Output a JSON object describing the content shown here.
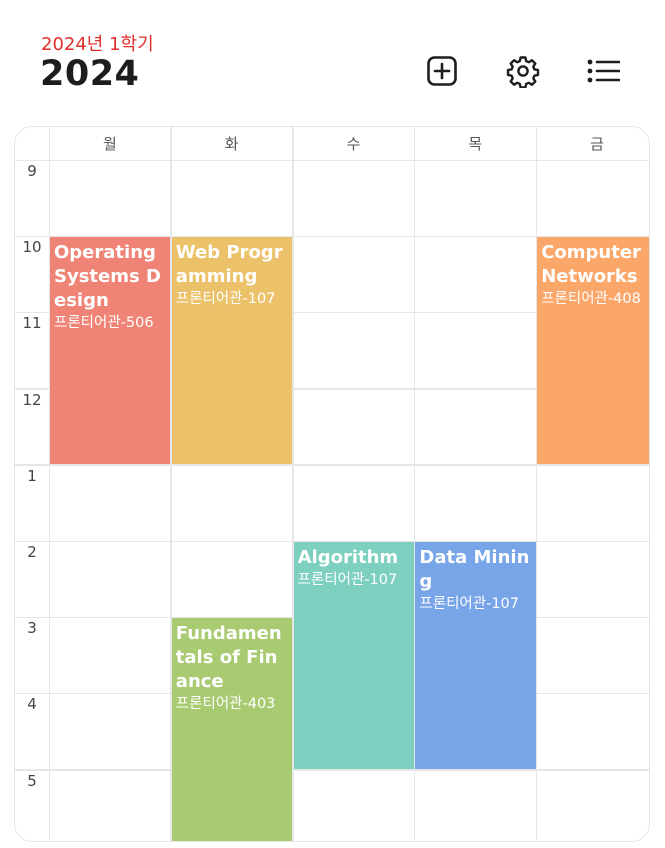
{
  "header": {
    "semester": "2024년 1학기",
    "year": "2024",
    "icons": [
      "add-square-icon",
      "gear-icon",
      "list-icon"
    ]
  },
  "days": [
    "월",
    "화",
    "수",
    "목",
    "금"
  ],
  "hours": [
    "9",
    "10",
    "11",
    "12",
    "1",
    "2",
    "3",
    "4",
    "5"
  ],
  "courses": [
    {
      "title": "Operating Systems Design",
      "room": "프론티어관-506",
      "day": "월",
      "start": "10",
      "end": "1",
      "color": "#ef8476"
    },
    {
      "title": "Web Programming",
      "room": "프론티어관-107",
      "day": "화",
      "start": "10",
      "end": "1",
      "color": "#ebc269"
    },
    {
      "title": "Computer Networks",
      "room": "프론티어관-408",
      "day": "금",
      "start": "10",
      "end": "1",
      "color": "#fca76a"
    },
    {
      "title": "Algorithm",
      "room": "프론티어관-107",
      "day": "수",
      "start": "2",
      "end": "5",
      "color": "#7dcfbf"
    },
    {
      "title": "Data Mining",
      "room": "프론티어관-107",
      "day": "목",
      "start": "2",
      "end": "5",
      "color": "#78a4e8"
    },
    {
      "title": "Fundamentals of Finance",
      "room": "프론티어관-403",
      "day": "화",
      "start": "3",
      "end": "6",
      "color": "#a8cb72"
    }
  ]
}
